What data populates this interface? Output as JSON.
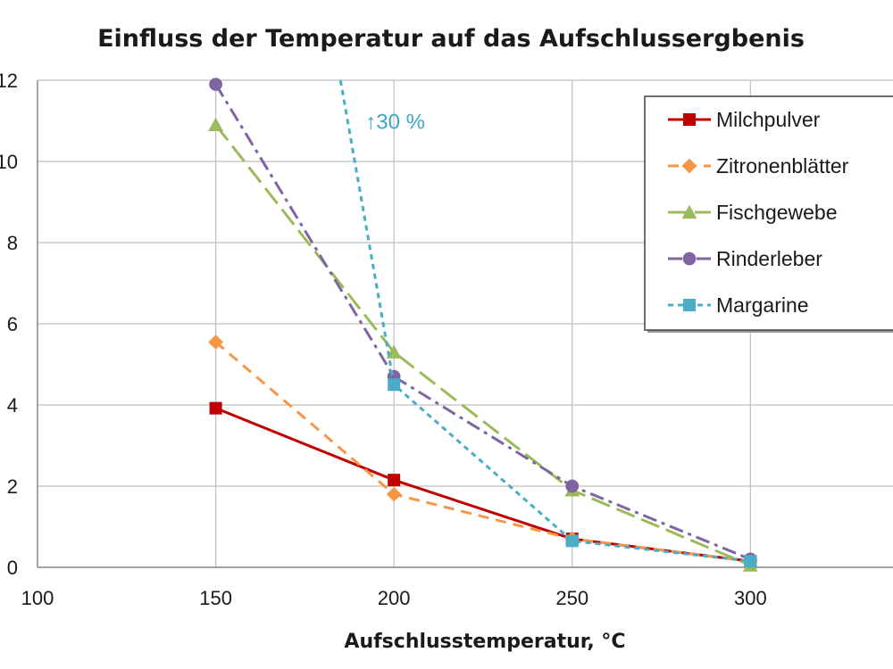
{
  "chart_data": {
    "type": "line",
    "title": "Einfluss der Temperatur auf das Aufschlussergbenis",
    "xlabel": "Aufschlusstemperatur, °C",
    "ylabel": "",
    "xlim": [
      100,
      340
    ],
    "ylim": [
      0,
      12
    ],
    "x_ticks": [
      100,
      150,
      200,
      250,
      300
    ],
    "y_ticks": [
      0,
      2,
      4,
      6,
      8,
      10,
      12
    ],
    "y_tick_labels": [
      "0",
      "2",
      "4",
      "6",
      "8",
      "10",
      "12"
    ],
    "grid": true,
    "legend_position": "top-right",
    "annotation": {
      "text": "↑30 %",
      "x": 192,
      "y": 11.2,
      "color": "#3ea6c6"
    },
    "series": [
      {
        "name": "Milchpulver",
        "color": "#c00000",
        "marker": "square",
        "dash": "solid",
        "x": [
          150,
          200,
          250,
          300
        ],
        "y": [
          3.92,
          2.15,
          0.7,
          0.15
        ]
      },
      {
        "name": "Zitronenblätter",
        "color": "#f79646",
        "marker": "diamond",
        "dash": "dash",
        "x": [
          150,
          200,
          250,
          300
        ],
        "y": [
          5.55,
          1.8,
          0.7,
          0.15
        ]
      },
      {
        "name": "Fischgewebe",
        "color": "#9bbb59",
        "marker": "triangle",
        "dash": "longdash",
        "x": [
          150,
          200,
          250,
          300
        ],
        "y": [
          10.9,
          5.3,
          1.9,
          0.05
        ]
      },
      {
        "name": "Rinderleber",
        "color": "#8064a2",
        "marker": "circle",
        "dash": "dashdot",
        "x": [
          150,
          200,
          250,
          300
        ],
        "y": [
          11.9,
          4.7,
          2.0,
          0.2
        ]
      },
      {
        "name": "Margarine",
        "color": "#4bacc6",
        "marker": "square",
        "dash": "shortdash",
        "x": [
          200,
          250,
          300
        ],
        "y": [
          4.5,
          0.65,
          0.15
        ],
        "offscale_start": {
          "x": 185,
          "y": 12
        }
      }
    ]
  }
}
